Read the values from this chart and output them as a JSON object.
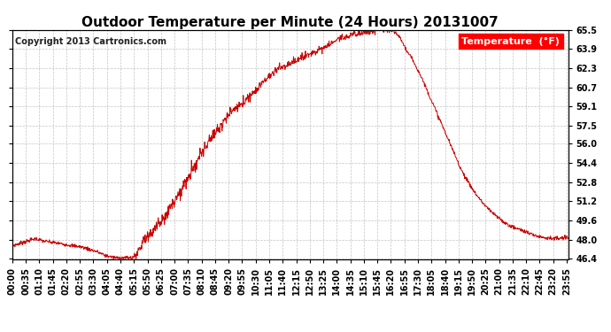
{
  "title": "Outdoor Temperature per Minute (24 Hours) 20131007",
  "copyright_text": "Copyright 2013 Cartronics.com",
  "legend_label": "Temperature  (°F)",
  "line_color": "#cc0000",
  "background_color": "#ffffff",
  "grid_color": "#aaaaaa",
  "ylim": [
    46.4,
    65.5
  ],
  "yticks": [
    46.4,
    48.0,
    49.6,
    51.2,
    52.8,
    54.4,
    56.0,
    57.5,
    59.1,
    60.7,
    62.3,
    63.9,
    65.5
  ],
  "title_fontsize": 11,
  "copyright_fontsize": 7,
  "legend_fontsize": 8,
  "tick_fontsize": 7,
  "key_points": [
    [
      0,
      47.5
    ],
    [
      20,
      47.7
    ],
    [
      40,
      47.9
    ],
    [
      60,
      48.1
    ],
    [
      80,
      47.9
    ],
    [
      100,
      47.8
    ],
    [
      120,
      47.7
    ],
    [
      140,
      47.6
    ],
    [
      160,
      47.5
    ],
    [
      180,
      47.4
    ],
    [
      200,
      47.2
    ],
    [
      220,
      47.0
    ],
    [
      240,
      46.7
    ],
    [
      260,
      46.55
    ],
    [
      270,
      46.5
    ],
    [
      280,
      46.5
    ],
    [
      300,
      46.5
    ],
    [
      310,
      46.5
    ],
    [
      315,
      46.6
    ],
    [
      325,
      47.0
    ],
    [
      335,
      47.5
    ],
    [
      350,
      48.2
    ],
    [
      370,
      49.0
    ],
    [
      390,
      49.8
    ],
    [
      410,
      50.8
    ],
    [
      430,
      51.8
    ],
    [
      450,
      52.8
    ],
    [
      470,
      54.0
    ],
    [
      490,
      55.2
    ],
    [
      510,
      56.3
    ],
    [
      530,
      57.2
    ],
    [
      550,
      58.0
    ],
    [
      570,
      58.7
    ],
    [
      590,
      59.3
    ],
    [
      610,
      59.8
    ],
    [
      630,
      60.5
    ],
    [
      650,
      61.2
    ],
    [
      670,
      61.8
    ],
    [
      690,
      62.4
    ],
    [
      710,
      62.5
    ],
    [
      730,
      62.9
    ],
    [
      750,
      63.2
    ],
    [
      770,
      63.5
    ],
    [
      790,
      63.8
    ],
    [
      810,
      64.1
    ],
    [
      830,
      64.5
    ],
    [
      850,
      64.8
    ],
    [
      870,
      65.0
    ],
    [
      890,
      65.2
    ],
    [
      910,
      65.3
    ],
    [
      930,
      65.4
    ],
    [
      950,
      65.5
    ],
    [
      960,
      65.5
    ],
    [
      970,
      65.5
    ],
    [
      975,
      65.5
    ],
    [
      980,
      65.4
    ],
    [
      990,
      65.3
    ],
    [
      1000,
      65.0
    ],
    [
      1010,
      64.5
    ],
    [
      1020,
      63.8
    ],
    [
      1040,
      62.8
    ],
    [
      1060,
      61.5
    ],
    [
      1080,
      60.0
    ],
    [
      1100,
      58.5
    ],
    [
      1120,
      57.0
    ],
    [
      1140,
      55.5
    ],
    [
      1160,
      54.0
    ],
    [
      1180,
      52.8
    ],
    [
      1200,
      51.8
    ],
    [
      1220,
      51.0
    ],
    [
      1240,
      50.3
    ],
    [
      1260,
      49.8
    ],
    [
      1280,
      49.3
    ],
    [
      1300,
      49.0
    ],
    [
      1320,
      48.8
    ],
    [
      1340,
      48.5
    ],
    [
      1360,
      48.3
    ],
    [
      1380,
      48.2
    ],
    [
      1400,
      48.1
    ],
    [
      1420,
      48.1
    ],
    [
      1439,
      48.2
    ]
  ]
}
